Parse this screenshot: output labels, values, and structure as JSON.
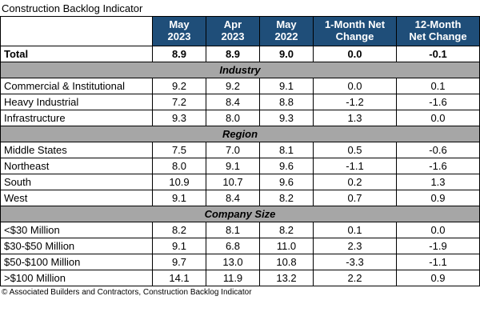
{
  "page_title": "Construction Backlog Indicator",
  "footer": "© Associated Builders and Contractors, Construction Backlog Indicator",
  "colors": {
    "header_bg": "#1F4E79",
    "header_text": "#ffffff",
    "section_bg": "#A6A6A6",
    "border": "#000000"
  },
  "chart_data": {
    "type": "table",
    "title": "Construction Backlog Indicator",
    "columns": [
      "",
      "May\n2023",
      "Apr\n2023",
      "May\n2022",
      "1-Month Net\nChange",
      "12-Month\nNet Change"
    ],
    "rows": [
      {
        "type": "total",
        "label": "Total",
        "values": [
          "8.9",
          "8.9",
          "9.0",
          "0.0",
          "-0.1"
        ]
      },
      {
        "type": "section",
        "label": "Industry"
      },
      {
        "type": "data",
        "label": "Commercial & Institutional",
        "values": [
          "9.2",
          "9.2",
          "9.1",
          "0.0",
          "0.1"
        ]
      },
      {
        "type": "data",
        "label": "Heavy Industrial",
        "values": [
          "7.2",
          "8.4",
          "8.8",
          "-1.2",
          "-1.6"
        ]
      },
      {
        "type": "data",
        "label": "Infrastructure",
        "values": [
          "9.3",
          "8.0",
          "9.3",
          "1.3",
          "0.0"
        ]
      },
      {
        "type": "section",
        "label": "Region"
      },
      {
        "type": "data",
        "label": "Middle States",
        "values": [
          "7.5",
          "7.0",
          "8.1",
          "0.5",
          "-0.6"
        ]
      },
      {
        "type": "data",
        "label": "Northeast",
        "values": [
          "8.0",
          "9.1",
          "9.6",
          "-1.1",
          "-1.6"
        ]
      },
      {
        "type": "data",
        "label": "South",
        "values": [
          "10.9",
          "10.7",
          "9.6",
          "0.2",
          "1.3"
        ]
      },
      {
        "type": "data",
        "label": "West",
        "values": [
          "9.1",
          "8.4",
          "8.2",
          "0.7",
          "0.9"
        ]
      },
      {
        "type": "section",
        "label": "Company Size"
      },
      {
        "type": "data",
        "label": "<$30 Million",
        "values": [
          "8.2",
          "8.1",
          "8.2",
          "0.1",
          "0.0"
        ]
      },
      {
        "type": "data",
        "label": "$30-$50 Million",
        "values": [
          "9.1",
          "6.8",
          "11.0",
          "2.3",
          "-1.9"
        ]
      },
      {
        "type": "data",
        "label": "$50-$100 Million",
        "values": [
          "9.7",
          "13.0",
          "10.8",
          "-3.3",
          "-1.1"
        ]
      },
      {
        "type": "data",
        "label": ">$100 Million",
        "values": [
          "14.1",
          "11.9",
          "13.2",
          "2.2",
          "0.9"
        ]
      }
    ]
  }
}
